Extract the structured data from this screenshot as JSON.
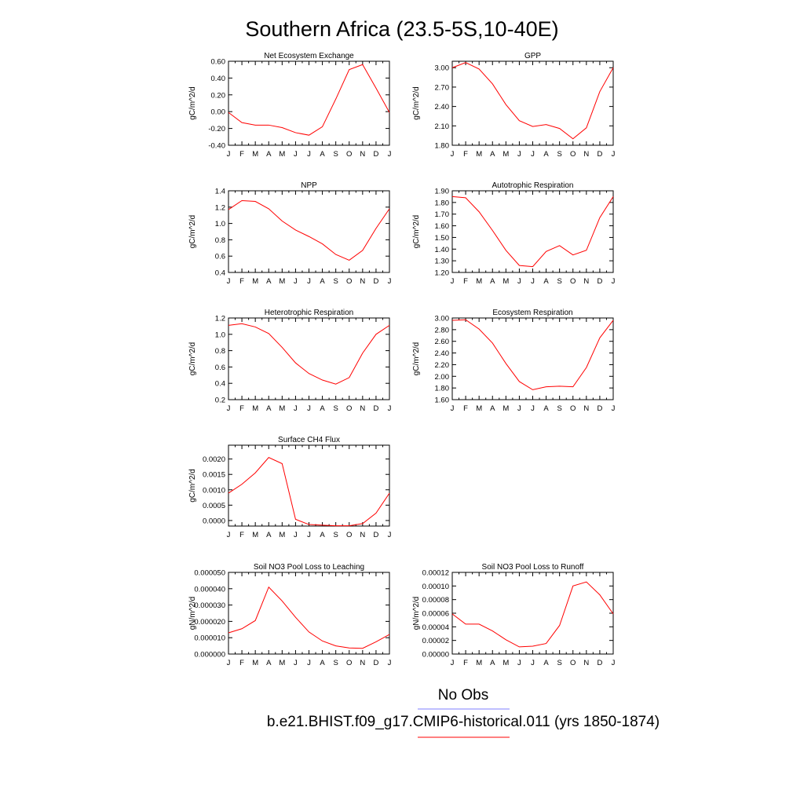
{
  "figure": {
    "title": "Southern Africa (23.5-5S,10-40E)",
    "series_color": "#ff0000",
    "obs_color": "#7f7fff"
  },
  "legend": {
    "obs_label": "No Obs",
    "model_label": "b.e21.BHIST.f09_g17.CMIP6-historical.011 (yrs 1850-1874)"
  },
  "chart_data": [
    {
      "type": "line",
      "title": "Net Ecosystem Exchange",
      "ylabel": "gC/m^2/d",
      "categories": [
        "J",
        "F",
        "M",
        "A",
        "M",
        "J",
        "J",
        "A",
        "S",
        "O",
        "N",
        "D",
        "J"
      ],
      "ylim": [
        -0.4,
        0.6
      ],
      "yticks": [
        -0.4,
        -0.2,
        0.0,
        0.2,
        0.4,
        0.6
      ],
      "ytick_labels": [
        "-0.40",
        "-0.20",
        "0.00",
        "0.20",
        "0.40",
        "0.60"
      ],
      "series": [
        {
          "values": [
            -0.01,
            -0.13,
            -0.16,
            -0.16,
            -0.19,
            -0.25,
            -0.28,
            -0.18,
            0.15,
            0.5,
            0.56,
            0.28,
            -0.01
          ]
        }
      ]
    },
    {
      "type": "line",
      "title": "GPP",
      "ylabel": "gC/m^2/d",
      "categories": [
        "J",
        "F",
        "M",
        "A",
        "M",
        "J",
        "J",
        "A",
        "S",
        "O",
        "N",
        "D",
        "J"
      ],
      "ylim": [
        1.8,
        3.1
      ],
      "yticks": [
        1.8,
        2.1,
        2.4,
        2.7,
        3.0
      ],
      "ytick_labels": [
        "1.80",
        "2.10",
        "2.40",
        "2.70",
        "3.00"
      ],
      "series": [
        {
          "values": [
            3.0,
            3.08,
            2.98,
            2.75,
            2.43,
            2.18,
            2.09,
            2.12,
            2.06,
            1.9,
            2.07,
            2.63,
            3.0
          ]
        }
      ]
    },
    {
      "type": "line",
      "title": "NPP",
      "ylabel": "gC/m^2/d",
      "categories": [
        "J",
        "F",
        "M",
        "A",
        "M",
        "J",
        "J",
        "A",
        "S",
        "O",
        "N",
        "D",
        "J"
      ],
      "ylim": [
        0.4,
        1.4
      ],
      "yticks": [
        0.4,
        0.6,
        0.8,
        1.0,
        1.2,
        1.4
      ],
      "ytick_labels": [
        "0.4",
        "0.6",
        "0.8",
        "1.0",
        "1.2",
        "1.4"
      ],
      "series": [
        {
          "values": [
            1.17,
            1.28,
            1.27,
            1.18,
            1.03,
            0.92,
            0.84,
            0.75,
            0.62,
            0.55,
            0.67,
            0.94,
            1.18
          ]
        }
      ]
    },
    {
      "type": "line",
      "title": "Autotrophic Respiration",
      "ylabel": "gC/m^2/d",
      "categories": [
        "J",
        "F",
        "M",
        "A",
        "M",
        "J",
        "J",
        "A",
        "S",
        "O",
        "N",
        "D",
        "J"
      ],
      "ylim": [
        1.2,
        1.9
      ],
      "yticks": [
        1.2,
        1.3,
        1.4,
        1.5,
        1.6,
        1.7,
        1.8,
        1.9
      ],
      "ytick_labels": [
        "1.20",
        "1.30",
        "1.40",
        "1.50",
        "1.60",
        "1.70",
        "1.80",
        "1.90"
      ],
      "series": [
        {
          "values": [
            1.85,
            1.84,
            1.72,
            1.56,
            1.39,
            1.26,
            1.25,
            1.38,
            1.43,
            1.35,
            1.39,
            1.67,
            1.85
          ]
        }
      ]
    },
    {
      "type": "line",
      "title": "Heterotrophic Respiration",
      "ylabel": "gC/m^2/d",
      "categories": [
        "J",
        "F",
        "M",
        "A",
        "M",
        "J",
        "J",
        "A",
        "S",
        "O",
        "N",
        "D",
        "J"
      ],
      "ylim": [
        0.2,
        1.2
      ],
      "yticks": [
        0.2,
        0.4,
        0.6,
        0.8,
        1.0,
        1.2
      ],
      "ytick_labels": [
        "0.2",
        "0.4",
        "0.6",
        "0.8",
        "1.0",
        "1.2"
      ],
      "series": [
        {
          "values": [
            1.11,
            1.13,
            1.09,
            1.01,
            0.84,
            0.65,
            0.52,
            0.44,
            0.39,
            0.47,
            0.77,
            1.0,
            1.11
          ]
        }
      ]
    },
    {
      "type": "line",
      "title": "Ecosystem Respiration",
      "ylabel": "gC/m^2/d",
      "categories": [
        "J",
        "F",
        "M",
        "A",
        "M",
        "J",
        "J",
        "A",
        "S",
        "O",
        "N",
        "D",
        "J"
      ],
      "ylim": [
        1.6,
        3.0
      ],
      "yticks": [
        1.6,
        1.8,
        2.0,
        2.2,
        2.4,
        2.6,
        2.8,
        3.0
      ],
      "ytick_labels": [
        "1.60",
        "1.80",
        "2.00",
        "2.20",
        "2.40",
        "2.60",
        "2.80",
        "3.00"
      ],
      "series": [
        {
          "values": [
            2.96,
            2.97,
            2.81,
            2.57,
            2.22,
            1.91,
            1.77,
            1.82,
            1.83,
            1.82,
            2.15,
            2.66,
            2.96
          ]
        }
      ]
    },
    {
      "type": "line",
      "title": "Surface CH4 Flux",
      "ylabel": "gC/m^2/d",
      "categories": [
        "J",
        "F",
        "M",
        "A",
        "M",
        "J",
        "J",
        "A",
        "S",
        "O",
        "N",
        "D",
        "J"
      ],
      "ylim": [
        -0.00018,
        0.00245
      ],
      "yticks": [
        0.0,
        0.0005,
        0.001,
        0.0015,
        0.002
      ],
      "ytick_labels": [
        "0.0000",
        "0.0005",
        "0.0010",
        "0.0015",
        "0.0020"
      ],
      "series": [
        {
          "values": [
            0.00089,
            0.00118,
            0.00155,
            0.00205,
            0.00185,
            4e-05,
            -0.00013,
            -0.00015,
            -0.00017,
            -0.00017,
            -0.0001,
            0.00024,
            0.00089
          ]
        }
      ]
    },
    {
      "type": "line",
      "title": "Soil NO3 Pool Loss to Leaching",
      "ylabel": "gN/m^2/d",
      "categories": [
        "J",
        "F",
        "M",
        "A",
        "M",
        "J",
        "J",
        "A",
        "S",
        "O",
        "N",
        "D",
        "J"
      ],
      "ylim": [
        0.0,
        5e-05
      ],
      "yticks": [
        0.0,
        1e-05,
        2e-05,
        3e-05,
        4e-05,
        5e-05
      ],
      "ytick_labels": [
        "0.000000",
        "0.000010",
        "0.000020",
        "0.000030",
        "0.000040",
        "0.000050"
      ],
      "series": [
        {
          "values": [
            1.3e-05,
            1.55e-05,
            2.05e-05,
            4.1e-05,
            3.25e-05,
            2.25e-05,
            1.35e-05,
            8e-06,
            5e-06,
            3.7e-06,
            3.5e-06,
            7.5e-06,
            1.2e-05
          ]
        }
      ]
    },
    {
      "type": "line",
      "title": "Soil NO3 Pool Loss to Runoff",
      "ylabel": "gN/m^2/d",
      "categories": [
        "J",
        "F",
        "M",
        "A",
        "M",
        "J",
        "J",
        "A",
        "S",
        "O",
        "N",
        "D",
        "J"
      ],
      "ylim": [
        0.0,
        0.00012
      ],
      "yticks": [
        0.0,
        2e-05,
        4e-05,
        6e-05,
        8e-05,
        0.0001,
        0.00012
      ],
      "ytick_labels": [
        "0.00000",
        "0.00002",
        "0.00004",
        "0.00006",
        "0.00008",
        "0.00010",
        "0.00012"
      ],
      "series": [
        {
          "values": [
            5.9e-05,
            4.4e-05,
            4.4e-05,
            3.4e-05,
            2.1e-05,
            1.05e-05,
            1.15e-05,
            1.55e-05,
            4.2e-05,
            0.0001,
            0.000106,
            8.7e-05,
            5.9e-05
          ]
        }
      ]
    }
  ]
}
